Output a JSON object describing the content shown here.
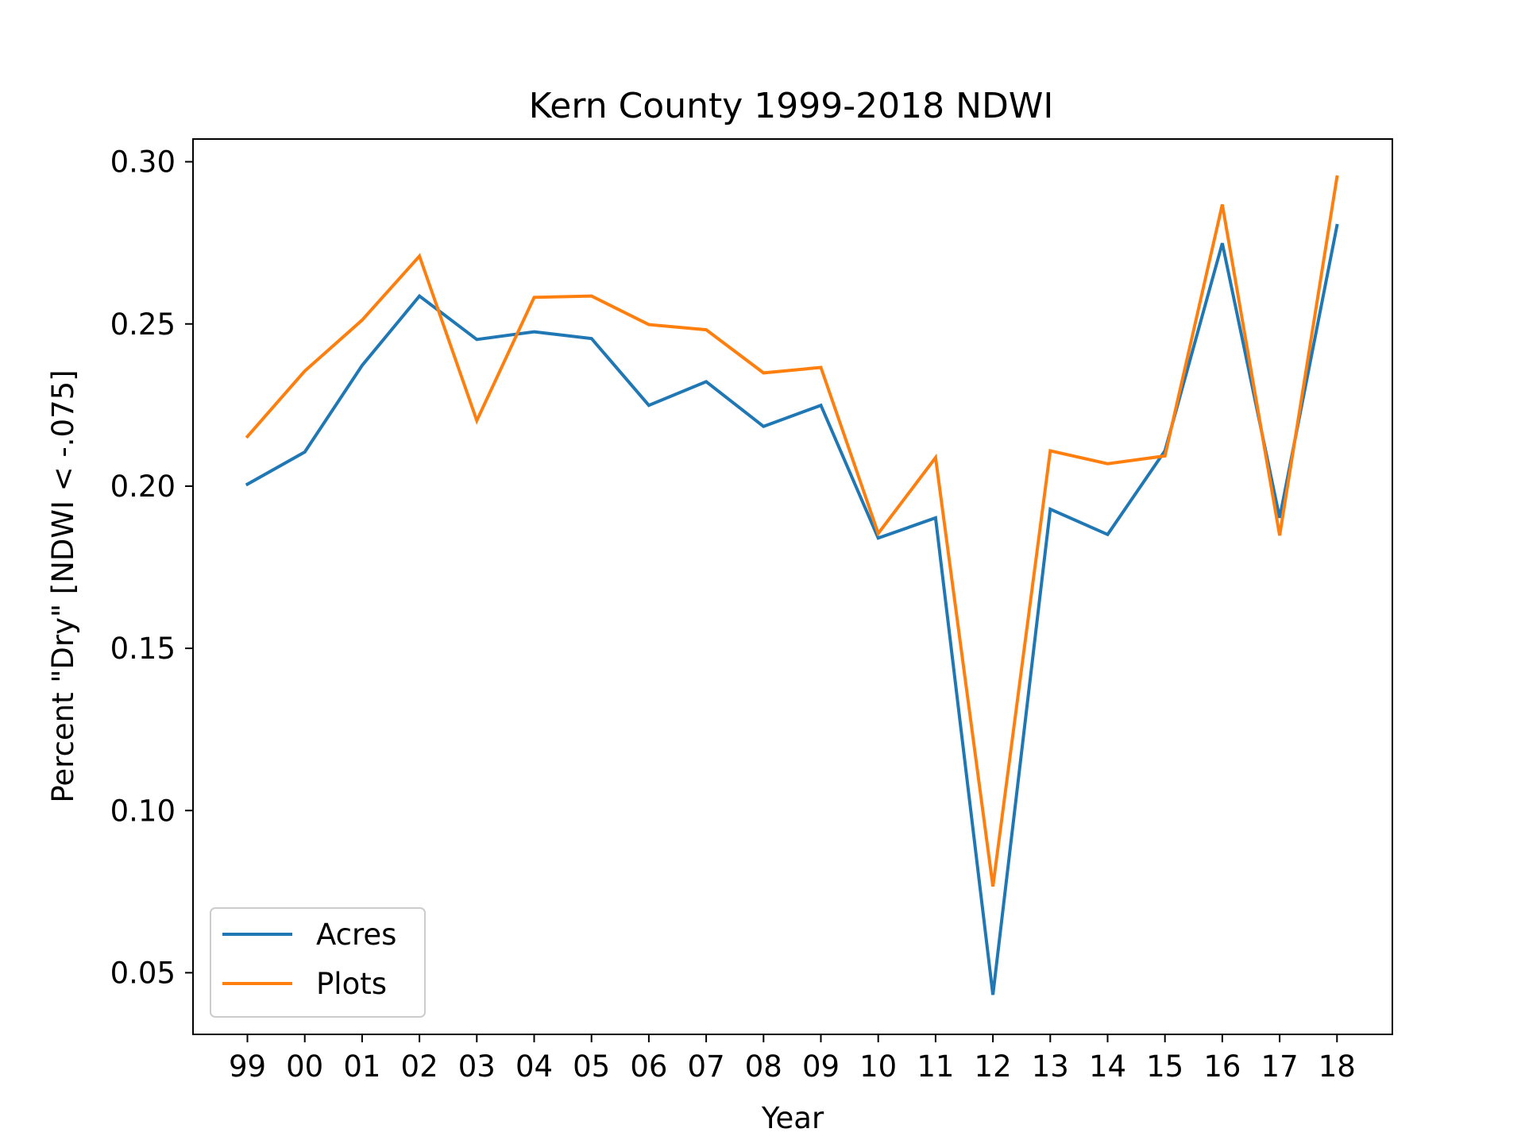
{
  "chart_data": {
    "type": "line",
    "title": "Kern County 1999-2018 NDWI",
    "xlabel": "Year",
    "ylabel": "Percent \"Dry\" [NDWI < -.075]",
    "categories": [
      "99",
      "00",
      "01",
      "02",
      "03",
      "04",
      "05",
      "06",
      "07",
      "08",
      "09",
      "10",
      "11",
      "12",
      "13",
      "14",
      "15",
      "16",
      "17",
      "18"
    ],
    "yticks": [
      "0.05",
      "0.10",
      "0.15",
      "0.20",
      "0.25",
      "0.30"
    ],
    "ylim": [
      0.031,
      0.307
    ],
    "grid": false,
    "legend_position": "lower-left",
    "series": [
      {
        "name": "Acres",
        "color": "#1f77b4",
        "values": [
          0.2006,
          0.2105,
          0.2372,
          0.2586,
          0.2452,
          0.2476,
          0.2455,
          0.2249,
          0.2322,
          0.2184,
          0.2249,
          0.184,
          0.1902,
          0.0432,
          0.1929,
          0.1851,
          0.2109,
          0.2749,
          0.1902,
          0.2803
        ]
      },
      {
        "name": "Plots",
        "color": "#ff7f0e",
        "values": [
          0.2153,
          0.2355,
          0.2512,
          0.2709,
          0.2202,
          0.2582,
          0.2586,
          0.2498,
          0.2482,
          0.2349,
          0.2366,
          0.1854,
          0.2088,
          0.0766,
          0.2109,
          0.2069,
          0.2093,
          0.2868,
          0.1848,
          0.2953
        ]
      }
    ]
  }
}
